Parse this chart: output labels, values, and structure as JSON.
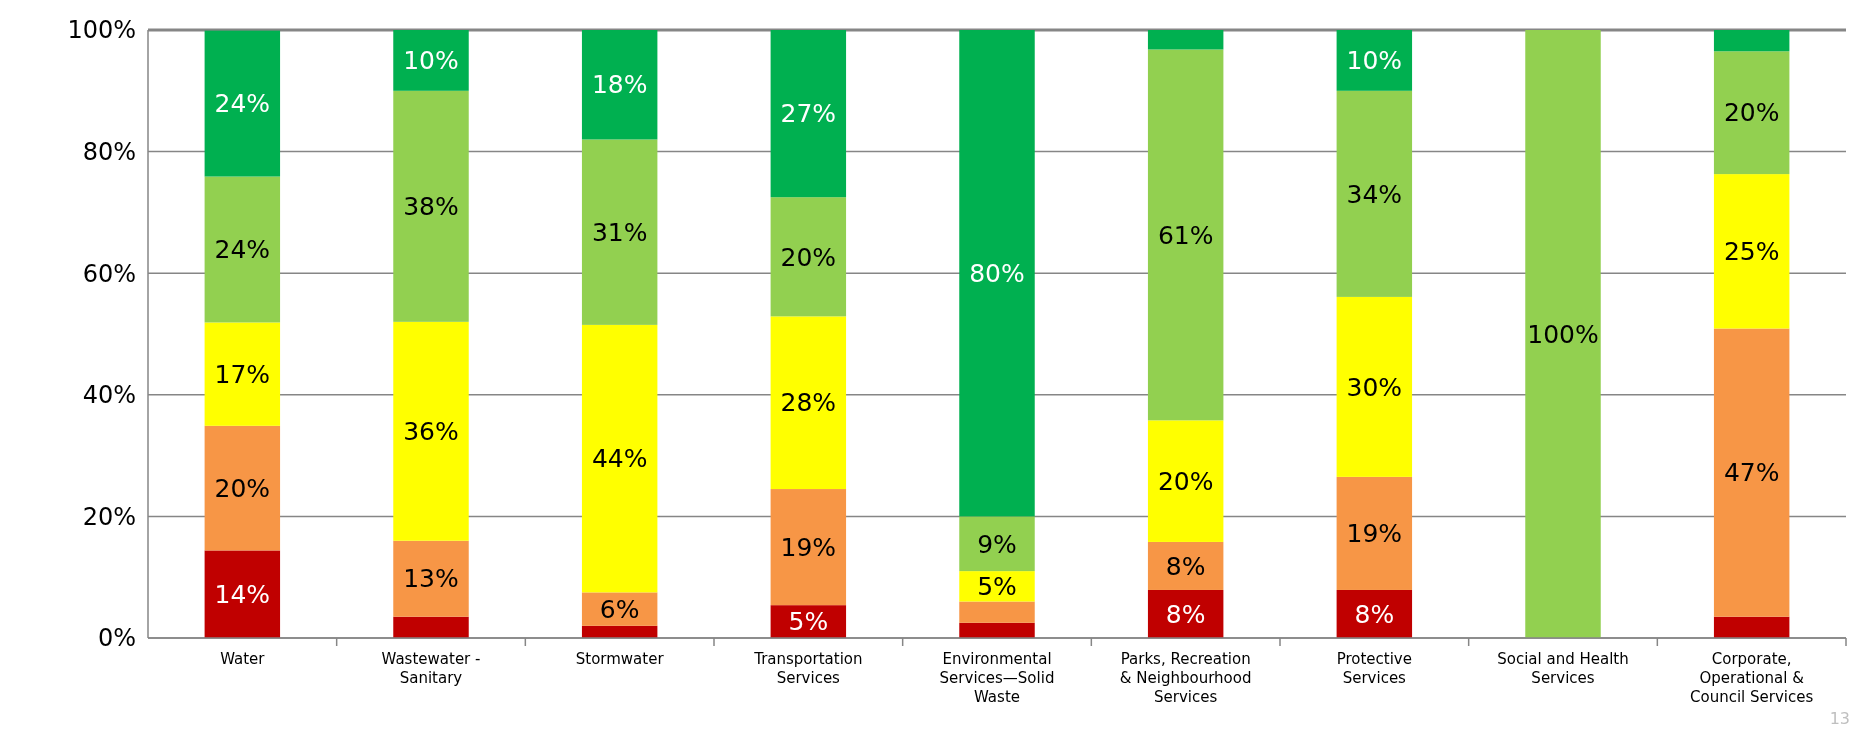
{
  "chart_data": {
    "type": "bar",
    "stacked": true,
    "categories": [
      "Water",
      "Wastewater - Sanitary",
      "Stormwater",
      "Transportation Services",
      "Environmental Services—Solid Waste",
      "Parks, Recreation & Neighbourhood Services",
      "Protective Services",
      "Social and Health Services",
      "Corporate, Operational & Council Services"
    ],
    "series": [
      {
        "color": "#c00000",
        "values": [
          14.4,
          3.5,
          2,
          5.4,
          2.5,
          7.9,
          7.9,
          null,
          3.5
        ],
        "value_labels": [
          "14%",
          null,
          null,
          "5%",
          null,
          "8%",
          "8%",
          null,
          null
        ]
      },
      {
        "color": "#f79646",
        "values": [
          20.5,
          12.5,
          5.5,
          19.1,
          3.5,
          7.9,
          18.6,
          null,
          47.4
        ],
        "value_labels": [
          "20%",
          "13%",
          "6%",
          "19%",
          null,
          "8%",
          "19%",
          null,
          "47%"
        ]
      },
      {
        "color": "#ffff00",
        "values": [
          17,
          36,
          44,
          28.4,
          5,
          20,
          29.6,
          null,
          25.4
        ],
        "value_labels": [
          "17%",
          "36%",
          "44%",
          "28%",
          "5%",
          "20%",
          "30%",
          null,
          "25%"
        ]
      },
      {
        "color": "#92d050",
        "values": [
          24,
          38,
          30.5,
          19.6,
          9,
          61,
          33.9,
          100,
          20.2
        ],
        "value_labels": [
          "24%",
          "38%",
          "31%",
          "20%",
          "9%",
          "61%",
          "34%",
          "100%",
          "20%"
        ]
      },
      {
        "color": "#00b050",
        "values": [
          24,
          10,
          18,
          27.5,
          80,
          3.2,
          10,
          null,
          3.5
        ],
        "value_labels": [
          "24%",
          "10%",
          "18%",
          "27%",
          "80%",
          null,
          "10%",
          null,
          null
        ]
      }
    ],
    "ylim": [
      0,
      100
    ],
    "yticks": [
      {
        "value": 0,
        "label": "0%"
      },
      {
        "value": 20,
        "label": "20%"
      },
      {
        "value": 40,
        "label": "40%"
      },
      {
        "value": 60,
        "label": "60%"
      },
      {
        "value": 80,
        "label": "80%"
      },
      {
        "value": 100,
        "label": "100%"
      }
    ],
    "grid": "y",
    "annotations": [
      "13"
    ]
  }
}
